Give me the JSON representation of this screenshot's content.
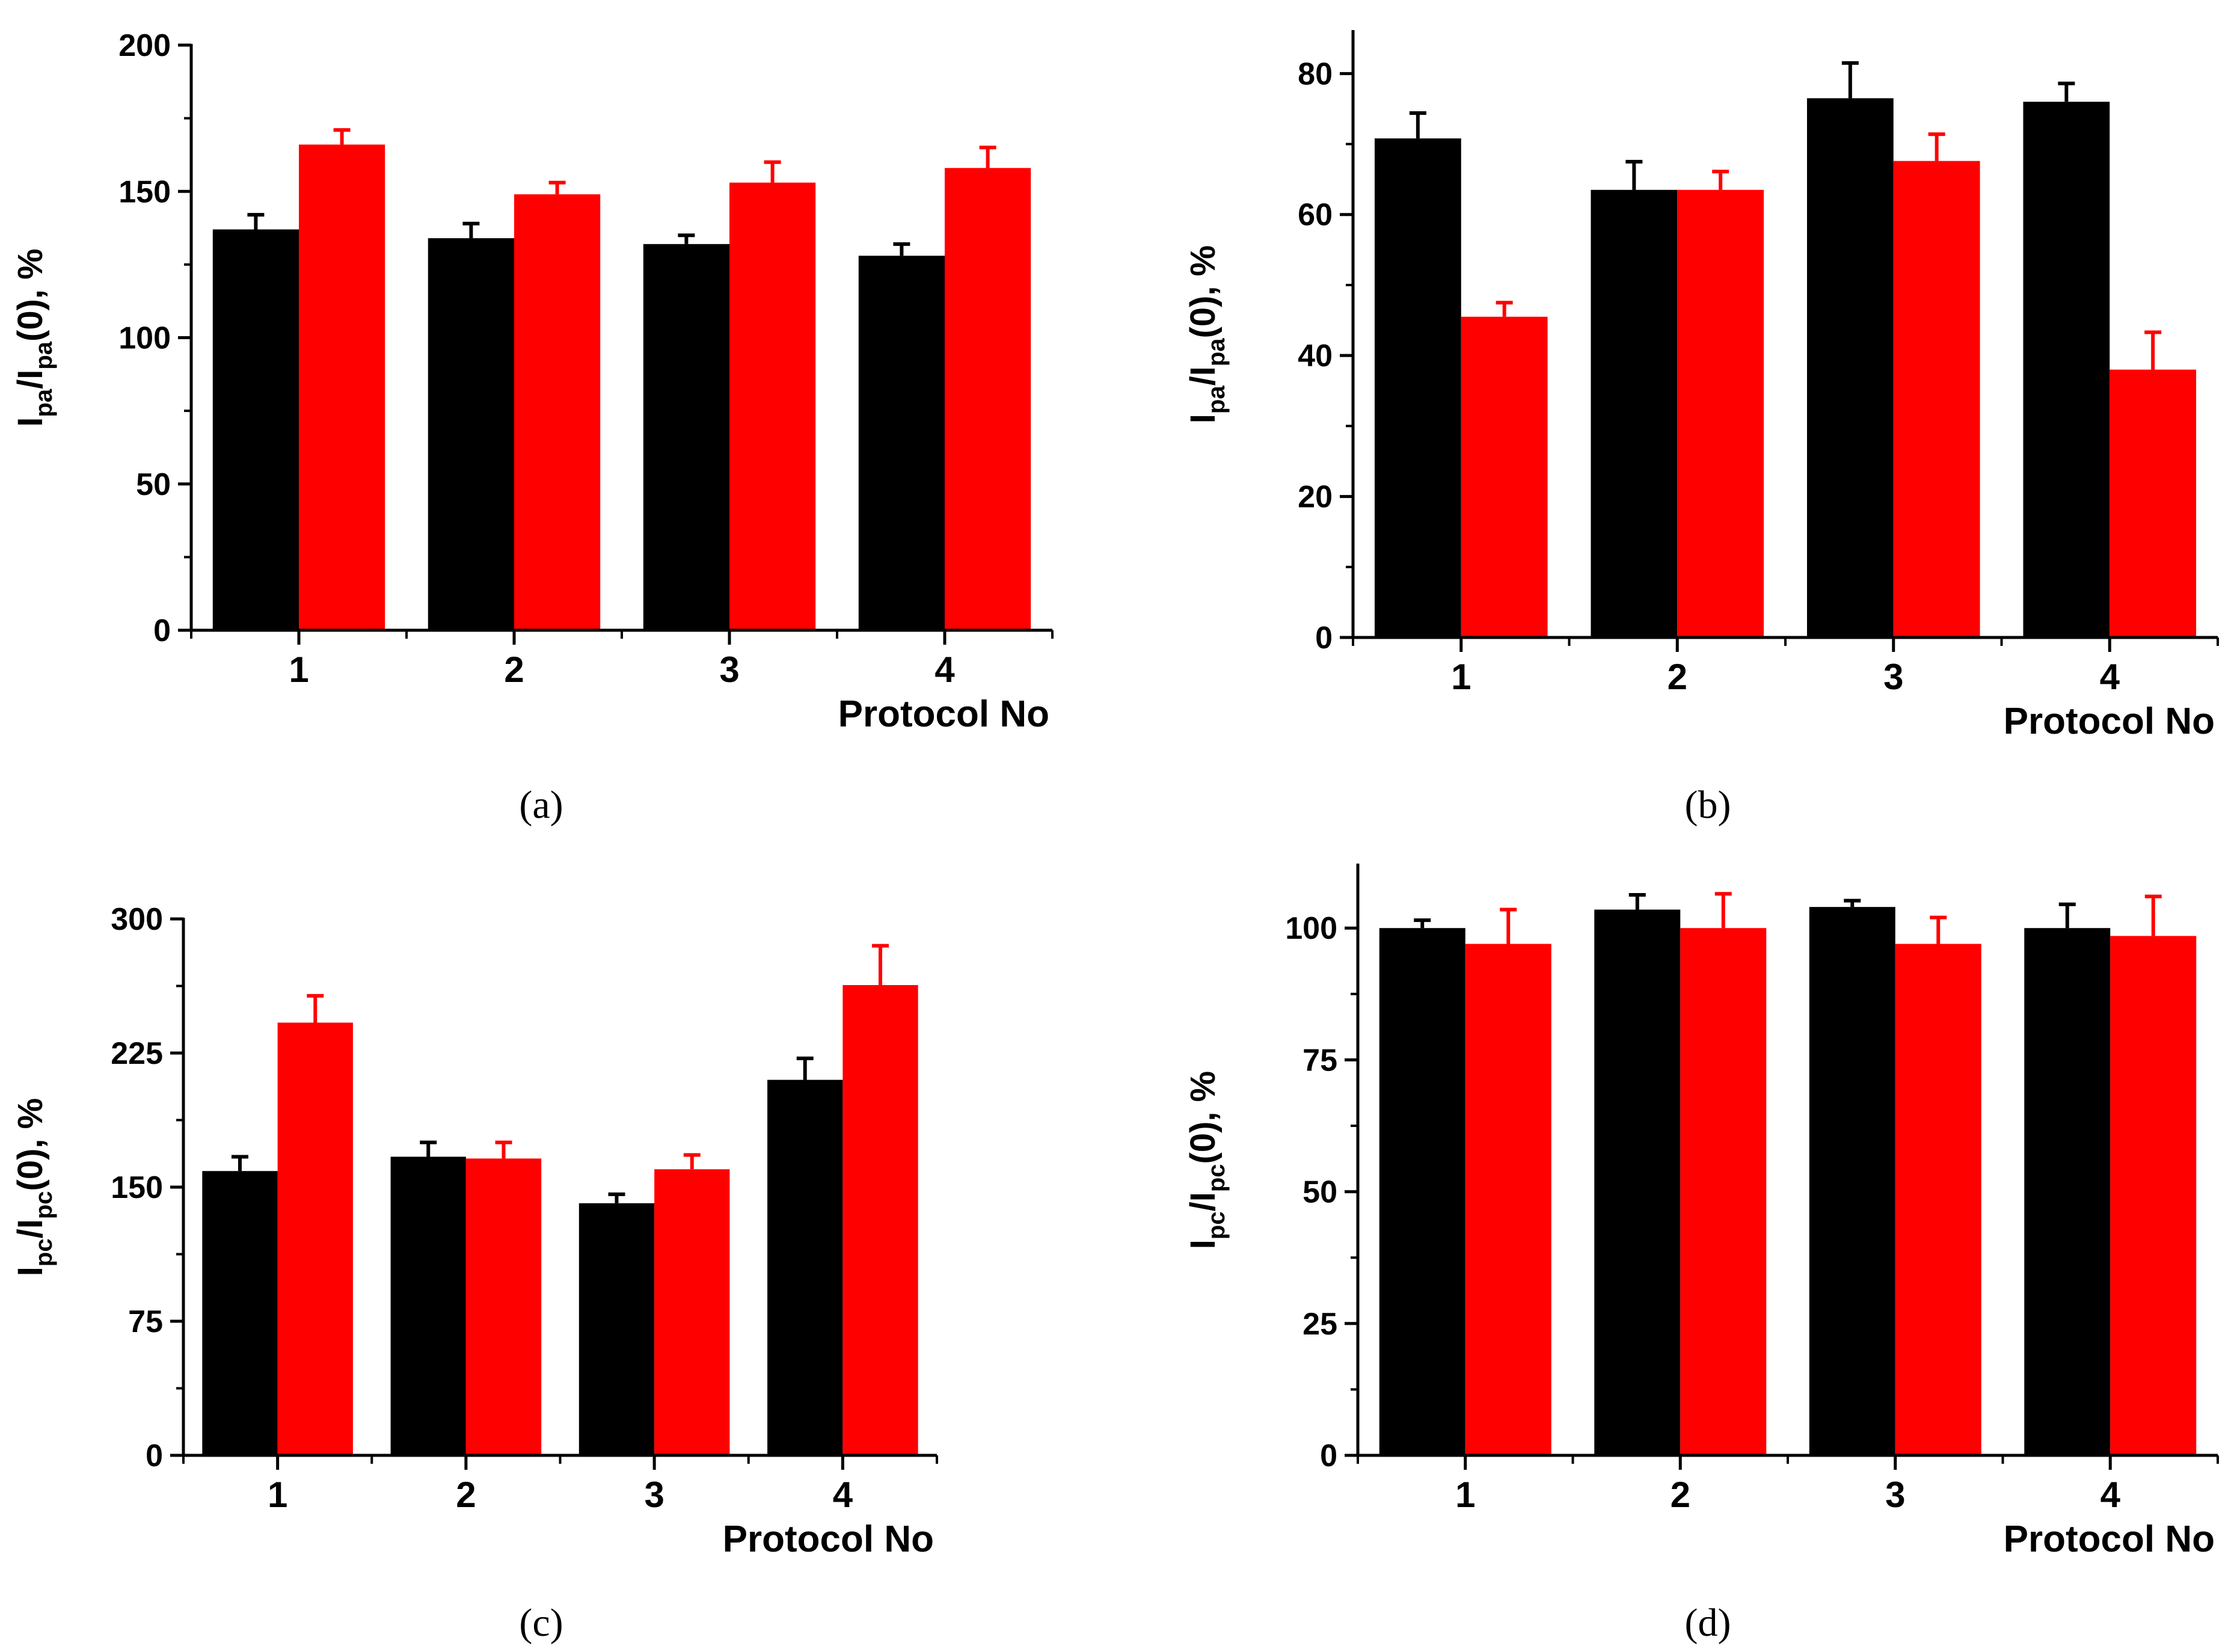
{
  "chart_data": [
    {
      "id": "a",
      "type": "bar",
      "caption": "(a)",
      "ylabel": {
        "main": "I",
        "sub1": "pa",
        "mid": "/I",
        "sub2": "pa",
        "tail": "(0), %"
      },
      "xlabel": "Protocol No",
      "categories": [
        "1",
        "2",
        "3",
        "4"
      ],
      "ylim": [
        0,
        200
      ],
      "yticks": [
        0,
        50,
        100,
        150,
        200
      ],
      "series": [
        {
          "name": "black",
          "color": "#000000",
          "values": [
            137,
            134,
            132,
            128
          ],
          "errors": [
            5,
            5,
            3,
            4
          ]
        },
        {
          "name": "red",
          "color": "#ff0000",
          "values": [
            166,
            149,
            153,
            158
          ],
          "errors": [
            5,
            4,
            7,
            7
          ]
        }
      ]
    },
    {
      "id": "b",
      "type": "bar",
      "caption": "(b)",
      "ylabel": {
        "main": "I",
        "sub1": "pa",
        "mid": "/I",
        "sub2": "pa",
        "tail": "(0), %"
      },
      "xlabel": "Protocol No",
      "categories": [
        "1",
        "2",
        "3",
        "4"
      ],
      "ylim": [
        0,
        86
      ],
      "yticks": [
        0,
        20,
        40,
        60,
        80
      ],
      "series": [
        {
          "name": "black",
          "color": "#000000",
          "values": [
            70.8,
            63.5,
            76.5,
            76.0
          ],
          "errors": [
            3.6,
            4.0,
            5.0,
            2.6
          ]
        },
        {
          "name": "red",
          "color": "#ff0000",
          "values": [
            45.5,
            63.5,
            67.6,
            38.0
          ],
          "errors": [
            2.0,
            2.6,
            3.8,
            5.3
          ]
        }
      ]
    },
    {
      "id": "c",
      "type": "bar",
      "caption": "(c)",
      "ylabel": {
        "main": "I",
        "sub1": "pc",
        "mid": "/I",
        "sub2": "pc",
        "tail": "(0), %"
      },
      "xlabel": "Protocol No",
      "categories": [
        "1",
        "2",
        "3",
        "4"
      ],
      "ylim": [
        0,
        300
      ],
      "yticks": [
        0,
        75,
        150,
        225,
        300
      ],
      "series": [
        {
          "name": "black",
          "color": "#000000",
          "values": [
            159,
            167,
            141,
            210
          ],
          "errors": [
            8,
            8,
            5,
            12
          ]
        },
        {
          "name": "red",
          "color": "#ff0000",
          "values": [
            242,
            166,
            160,
            263
          ],
          "errors": [
            15,
            9,
            8,
            22
          ]
        }
      ]
    },
    {
      "id": "d",
      "type": "bar",
      "caption": "(d)",
      "ylabel": {
        "main": "I",
        "sub1": "pc",
        "mid": "/I",
        "sub2": "pc",
        "tail": "(0), %"
      },
      "xlabel": "Protocol No",
      "categories": [
        "1",
        "2",
        "3",
        "4"
      ],
      "ylim": [
        0,
        112
      ],
      "yticks": [
        0,
        25,
        50,
        75,
        100
      ],
      "series": [
        {
          "name": "black",
          "color": "#000000",
          "values": [
            100,
            103.5,
            104,
            100
          ],
          "errors": [
            1.5,
            2.8,
            1.2,
            4.5
          ]
        },
        {
          "name": "red",
          "color": "#ff0000",
          "values": [
            97,
            100,
            97,
            98.5
          ],
          "errors": [
            6.5,
            6.5,
            5,
            7.5
          ]
        }
      ]
    }
  ]
}
